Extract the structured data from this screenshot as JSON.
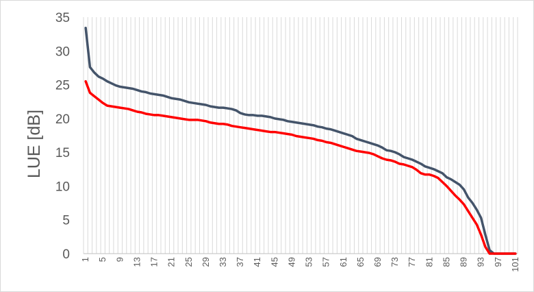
{
  "chart_data": {
    "type": "line",
    "title": "",
    "xlabel": "",
    "ylabel": "LUE [dB]",
    "ylim": [
      0,
      35
    ],
    "yticks": [
      0,
      5,
      10,
      15,
      20,
      25,
      30,
      35
    ],
    "xlim": [
      1,
      101
    ],
    "xtick_labels": [
      "1",
      "5",
      "9",
      "13",
      "17",
      "21",
      "25",
      "29",
      "33",
      "37",
      "41",
      "45",
      "49",
      "53",
      "57",
      "61",
      "65",
      "69",
      "73",
      "77",
      "81",
      "85",
      "89",
      "93",
      "97",
      "101"
    ],
    "grid": "vertical gridlines at every category",
    "legend": "none",
    "series": [
      {
        "color": "#44546a",
        "x": [
          1,
          2,
          3,
          4,
          5,
          6,
          7,
          8,
          9,
          10,
          11,
          12,
          13,
          14,
          15,
          16,
          17,
          18,
          19,
          20,
          21,
          22,
          23,
          24,
          25,
          26,
          27,
          28,
          29,
          30,
          31,
          32,
          33,
          34,
          35,
          36,
          37,
          38,
          39,
          40,
          41,
          42,
          43,
          44,
          45,
          46,
          47,
          48,
          49,
          50,
          51,
          52,
          53,
          54,
          55,
          56,
          57,
          58,
          59,
          60,
          61,
          62,
          63,
          64,
          65,
          66,
          67,
          68,
          69,
          70,
          71,
          72,
          73,
          74,
          75,
          76,
          77,
          78,
          79,
          80,
          81,
          82,
          83,
          84,
          85,
          86,
          87,
          88,
          89,
          90,
          91,
          92,
          93,
          94,
          95,
          96,
          97,
          98,
          99,
          100,
          101
        ],
        "values": [
          33.4,
          27.6,
          26.8,
          26.2,
          25.9,
          25.5,
          25.2,
          24.9,
          24.7,
          24.6,
          24.5,
          24.4,
          24.2,
          24.0,
          23.9,
          23.7,
          23.6,
          23.5,
          23.4,
          23.2,
          23.0,
          22.9,
          22.8,
          22.6,
          22.4,
          22.3,
          22.2,
          22.1,
          22.0,
          21.8,
          21.7,
          21.6,
          21.6,
          21.5,
          21.4,
          21.2,
          20.8,
          20.6,
          20.5,
          20.5,
          20.4,
          20.4,
          20.3,
          20.2,
          20.0,
          19.9,
          19.8,
          19.6,
          19.5,
          19.4,
          19.3,
          19.2,
          19.1,
          19.0,
          18.8,
          18.7,
          18.5,
          18.4,
          18.2,
          18.0,
          17.8,
          17.6,
          17.4,
          17.0,
          16.8,
          16.6,
          16.4,
          16.2,
          16.0,
          15.7,
          15.3,
          15.2,
          15.0,
          14.7,
          14.3,
          14.1,
          13.9,
          13.6,
          13.3,
          12.9,
          12.7,
          12.5,
          12.2,
          11.9,
          11.3,
          11.0,
          10.6,
          10.2,
          9.5,
          8.3,
          7.5,
          6.5,
          5.3,
          2.8,
          0.5,
          0.0,
          0.0,
          0.0,
          0.0,
          0.0,
          0.0
        ]
      },
      {
        "color": "#ff0000",
        "x": [
          1,
          2,
          3,
          4,
          5,
          6,
          7,
          8,
          9,
          10,
          11,
          12,
          13,
          14,
          15,
          16,
          17,
          18,
          19,
          20,
          21,
          22,
          23,
          24,
          25,
          26,
          27,
          28,
          29,
          30,
          31,
          32,
          33,
          34,
          35,
          36,
          37,
          38,
          39,
          40,
          41,
          42,
          43,
          44,
          45,
          46,
          47,
          48,
          49,
          50,
          51,
          52,
          53,
          54,
          55,
          56,
          57,
          58,
          59,
          60,
          61,
          62,
          63,
          64,
          65,
          66,
          67,
          68,
          69,
          70,
          71,
          72,
          73,
          74,
          75,
          76,
          77,
          78,
          79,
          80,
          81,
          82,
          83,
          84,
          85,
          86,
          87,
          88,
          89,
          90,
          91,
          92,
          93,
          94,
          95,
          96,
          97,
          98,
          99,
          100,
          101
        ],
        "values": [
          25.5,
          23.8,
          23.3,
          22.8,
          22.3,
          21.9,
          21.8,
          21.7,
          21.6,
          21.5,
          21.4,
          21.2,
          21.0,
          20.9,
          20.7,
          20.6,
          20.5,
          20.5,
          20.4,
          20.3,
          20.2,
          20.1,
          20.0,
          19.9,
          19.8,
          19.8,
          19.8,
          19.7,
          19.6,
          19.4,
          19.3,
          19.2,
          19.2,
          19.1,
          18.9,
          18.8,
          18.7,
          18.6,
          18.5,
          18.4,
          18.3,
          18.2,
          18.1,
          18.0,
          18.0,
          17.9,
          17.8,
          17.7,
          17.6,
          17.4,
          17.3,
          17.2,
          17.1,
          17.0,
          16.8,
          16.7,
          16.5,
          16.4,
          16.2,
          16.0,
          15.8,
          15.6,
          15.4,
          15.2,
          15.1,
          15.0,
          14.9,
          14.7,
          14.4,
          14.1,
          13.9,
          13.8,
          13.6,
          13.3,
          13.2,
          13.0,
          12.8,
          12.4,
          11.9,
          11.7,
          11.7,
          11.5,
          11.2,
          10.6,
          10.0,
          9.3,
          8.6,
          8.0,
          7.3,
          6.3,
          5.3,
          4.3,
          2.8,
          1.0,
          0.0,
          0.0,
          0.0,
          0.0,
          0.0,
          0.0,
          0.0
        ]
      }
    ]
  }
}
